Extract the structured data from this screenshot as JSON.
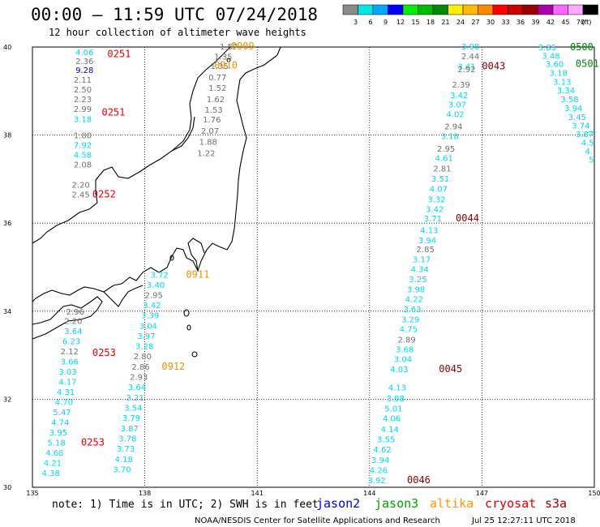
{
  "title": "00:00 – 11:59 UTC 07/24/2018",
  "subtitle": "12 hour collection of altimeter wave heights",
  "scale": {
    "labels": [
      "3",
      "6",
      "9",
      "12",
      "15",
      "18",
      "21",
      "24",
      "27",
      "30",
      "33",
      "36",
      "39",
      "42",
      "45",
      "70",
      "(ft)"
    ],
    "colors": [
      "#8a8a8a",
      "#00e5e5",
      "#00a8ff",
      "#0000ff",
      "#00ee00",
      "#00bb00",
      "#008800",
      "#ffee00",
      "#ffbb00",
      "#ff8800",
      "#ff0000",
      "#cc0000",
      "#990000",
      "#aa00aa",
      "#ff66ff",
      "#ffaaff",
      "#000000"
    ]
  },
  "map": {
    "lon_ticks": [
      "135",
      "138",
      "141",
      "144",
      "147",
      "150"
    ],
    "lat_ticks": [
      "40",
      "38",
      "36",
      "34",
      "32",
      "30"
    ]
  },
  "colors": {
    "gray": "#707070",
    "cyan": "#00d8e8",
    "navy": "#0000cc",
    "red": "#ee0000",
    "orange": "#f09000",
    "maroon": "#880000",
    "green": "#008800",
    "land": "#000000"
  },
  "observations": [
    {
      "t": "4.06",
      "c": "cyan",
      "lon": 136.15,
      "lat": 39.89
    },
    {
      "t": "2.36",
      "c": "gray",
      "lon": 136.15,
      "lat": 39.69
    },
    {
      "t": "9.28",
      "c": "navy",
      "lon": 136.15,
      "lat": 39.48
    },
    {
      "t": "2.11",
      "c": "gray",
      "lon": 136.1,
      "lat": 39.26
    },
    {
      "t": "2.50",
      "c": "gray",
      "lon": 136.1,
      "lat": 39.04
    },
    {
      "t": "2.23",
      "c": "gray",
      "lon": 136.1,
      "lat": 38.82
    },
    {
      "t": "2.99",
      "c": "gray",
      "lon": 136.1,
      "lat": 38.6
    },
    {
      "t": "3.18",
      "c": "cyan",
      "lon": 136.1,
      "lat": 38.37
    },
    {
      "t": "1.80",
      "c": "gray",
      "lon": 136.1,
      "lat": 38.0
    },
    {
      "t": "7.92",
      "c": "cyan",
      "lon": 136.1,
      "lat": 37.78
    },
    {
      "t": "4.58",
      "c": "cyan",
      "lon": 136.1,
      "lat": 37.56
    },
    {
      "t": "2.08",
      "c": "gray",
      "lon": 136.1,
      "lat": 37.34
    },
    {
      "t": "2.20",
      "c": "gray",
      "lon": 136.05,
      "lat": 36.88
    },
    {
      "t": "2.45",
      "c": "gray",
      "lon": 136.05,
      "lat": 36.66
    },
    {
      "t": "1.57",
      "c": "gray",
      "lon": 140.0,
      "lat": 40.02
    },
    {
      "t": "1.35",
      "c": "gray",
      "lon": 139.85,
      "lat": 39.79
    },
    {
      "t": "1.35",
      "c": "gray",
      "lon": 139.75,
      "lat": 39.58
    },
    {
      "t": "0.77",
      "c": "gray",
      "lon": 139.7,
      "lat": 39.32
    },
    {
      "t": "1.52",
      "c": "gray",
      "lon": 139.7,
      "lat": 39.08
    },
    {
      "t": "1.62",
      "c": "gray",
      "lon": 139.65,
      "lat": 38.82
    },
    {
      "t": "1.53",
      "c": "gray",
      "lon": 139.6,
      "lat": 38.58
    },
    {
      "t": "1.76",
      "c": "gray",
      "lon": 139.55,
      "lat": 38.36
    },
    {
      "t": "2.07",
      "c": "gray",
      "lon": 139.5,
      "lat": 38.1
    },
    {
      "t": "1.88",
      "c": "gray",
      "lon": 139.45,
      "lat": 37.85
    },
    {
      "t": "1.22",
      "c": "gray",
      "lon": 139.4,
      "lat": 37.6
    },
    {
      "t": "3.90",
      "c": "cyan",
      "lon": 146.45,
      "lat": 40.02
    },
    {
      "t": "2.44",
      "c": "gray",
      "lon": 146.45,
      "lat": 39.8
    },
    {
      "t": "3.41",
      "c": "cyan",
      "lon": 146.35,
      "lat": 39.57
    },
    {
      "t": "2.92",
      "c": "gray",
      "lon": 146.35,
      "lat": 39.5
    },
    {
      "t": "2.39",
      "c": "gray",
      "lon": 146.2,
      "lat": 39.15
    },
    {
      "t": "3.42",
      "c": "cyan",
      "lon": 146.15,
      "lat": 38.91
    },
    {
      "t": "3.07",
      "c": "cyan",
      "lon": 146.1,
      "lat": 38.7
    },
    {
      "t": "4.02",
      "c": "cyan",
      "lon": 146.05,
      "lat": 38.48
    },
    {
      "t": "2.94",
      "c": "gray",
      "lon": 146.0,
      "lat": 38.2
    },
    {
      "t": "3.18",
      "c": "cyan",
      "lon": 145.9,
      "lat": 37.98
    },
    {
      "t": "2.95",
      "c": "gray",
      "lon": 145.8,
      "lat": 37.7
    },
    {
      "t": "4.61",
      "c": "cyan",
      "lon": 145.75,
      "lat": 37.49
    },
    {
      "t": "2.81",
      "c": "gray",
      "lon": 145.7,
      "lat": 37.25
    },
    {
      "t": "3.51",
      "c": "cyan",
      "lon": 145.65,
      "lat": 37.02
    },
    {
      "t": "4.07",
      "c": "cyan",
      "lon": 145.6,
      "lat": 36.79
    },
    {
      "t": "3.32",
      "c": "cyan",
      "lon": 145.55,
      "lat": 36.55
    },
    {
      "t": "3.42",
      "c": "cyan",
      "lon": 145.5,
      "lat": 36.33
    },
    {
      "t": "3.71",
      "c": "cyan",
      "lon": 145.45,
      "lat": 36.11
    },
    {
      "t": "4.13",
      "c": "cyan",
      "lon": 145.35,
      "lat": 35.85
    },
    {
      "t": "3.94",
      "c": "cyan",
      "lon": 145.3,
      "lat": 35.62
    },
    {
      "t": "2.85",
      "c": "gray",
      "lon": 145.25,
      "lat": 35.41
    },
    {
      "t": "3.17",
      "c": "cyan",
      "lon": 145.15,
      "lat": 35.18
    },
    {
      "t": "4.34",
      "c": "cyan",
      "lon": 145.1,
      "lat": 34.96
    },
    {
      "t": "3.25",
      "c": "cyan",
      "lon": 145.05,
      "lat": 34.73
    },
    {
      "t": "3.98",
      "c": "cyan",
      "lon": 145.0,
      "lat": 34.5
    },
    {
      "t": "4.22",
      "c": "cyan",
      "lon": 144.95,
      "lat": 34.28
    },
    {
      "t": "3.63",
      "c": "cyan",
      "lon": 144.9,
      "lat": 34.05
    },
    {
      "t": "3.29",
      "c": "cyan",
      "lon": 144.85,
      "lat": 33.82
    },
    {
      "t": "4.75",
      "c": "cyan",
      "lon": 144.8,
      "lat": 33.6
    },
    {
      "t": "2.89",
      "c": "gray",
      "lon": 144.75,
      "lat": 33.36
    },
    {
      "t": "3.68",
      "c": "cyan",
      "lon": 144.7,
      "lat": 33.14
    },
    {
      "t": "3.04",
      "c": "cyan",
      "lon": 144.65,
      "lat": 32.92
    },
    {
      "t": "4.03",
      "c": "cyan",
      "lon": 144.55,
      "lat": 32.69
    },
    {
      "t": "4.13",
      "c": "cyan",
      "lon": 144.5,
      "lat": 32.27
    },
    {
      "t": "3.98",
      "c": "cyan",
      "lon": 144.45,
      "lat": 32.03
    },
    {
      "t": "5.01",
      "c": "cyan",
      "lon": 144.4,
      "lat": 31.8
    },
    {
      "t": "4.06",
      "c": "cyan",
      "lon": 144.35,
      "lat": 31.57
    },
    {
      "t": "4.14",
      "c": "cyan",
      "lon": 144.3,
      "lat": 31.33
    },
    {
      "t": "3.55",
      "c": "cyan",
      "lon": 144.2,
      "lat": 31.1
    },
    {
      "t": "4.62",
      "c": "cyan",
      "lon": 144.1,
      "lat": 30.87
    },
    {
      "t": "3.94",
      "c": "cyan",
      "lon": 144.05,
      "lat": 30.63
    },
    {
      "t": "4.26",
      "c": "cyan",
      "lon": 144.0,
      "lat": 30.4
    },
    {
      "t": "3.92",
      "c": "cyan",
      "lon": 143.95,
      "lat": 30.17
    },
    {
      "t": "3.85",
      "c": "cyan",
      "lon": 148.5,
      "lat": 40.0
    },
    {
      "t": "3.48",
      "c": "cyan",
      "lon": 148.6,
      "lat": 39.81
    },
    {
      "t": "3.60",
      "c": "cyan",
      "lon": 148.7,
      "lat": 39.62
    },
    {
      "t": "3.18",
      "c": "cyan",
      "lon": 148.8,
      "lat": 39.42
    },
    {
      "t": "3.13",
      "c": "cyan",
      "lon": 148.9,
      "lat": 39.22
    },
    {
      "t": "3.34",
      "c": "cyan",
      "lon": 149.0,
      "lat": 39.02
    },
    {
      "t": "3.58",
      "c": "cyan",
      "lon": 149.1,
      "lat": 38.82
    },
    {
      "t": "3.94",
      "c": "cyan",
      "lon": 149.2,
      "lat": 38.62
    },
    {
      "t": "3.45",
      "c": "cyan",
      "lon": 149.3,
      "lat": 38.42
    },
    {
      "t": "3.74",
      "c": "cyan",
      "lon": 149.4,
      "lat": 38.22
    },
    {
      "t": "3.87",
      "c": "cyan",
      "lon": 149.5,
      "lat": 38.03
    },
    {
      "t": "4.5",
      "c": "cyan",
      "lon": 149.65,
      "lat": 37.84
    },
    {
      "t": "4.",
      "c": "cyan",
      "lon": 149.75,
      "lat": 37.64
    },
    {
      "t": "5",
      "c": "cyan",
      "lon": 149.85,
      "lat": 37.45
    },
    {
      "t": "3.72",
      "c": "cyan",
      "lon": 138.15,
      "lat": 34.83
    },
    {
      "t": "3.40",
      "c": "cyan",
      "lon": 138.05,
      "lat": 34.6
    },
    {
      "t": "2.95",
      "c": "gray",
      "lon": 138.0,
      "lat": 34.37
    },
    {
      "t": "3.42",
      "c": "cyan",
      "lon": 137.95,
      "lat": 34.14
    },
    {
      "t": "3.39",
      "c": "cyan",
      "lon": 137.9,
      "lat": 33.91
    },
    {
      "t": "3.04",
      "c": "cyan",
      "lon": 137.85,
      "lat": 33.67
    },
    {
      "t": "3.97",
      "c": "cyan",
      "lon": 137.8,
      "lat": 33.44
    },
    {
      "t": "3.28",
      "c": "cyan",
      "lon": 137.75,
      "lat": 33.21
    },
    {
      "t": "2.80",
      "c": "gray",
      "lon": 137.7,
      "lat": 32.98
    },
    {
      "t": "2.86",
      "c": "gray",
      "lon": 137.65,
      "lat": 32.74
    },
    {
      "t": "2.93",
      "c": "gray",
      "lon": 137.6,
      "lat": 32.51
    },
    {
      "t": "3.64",
      "c": "cyan",
      "lon": 137.55,
      "lat": 32.28
    },
    {
      "t": "3.21",
      "c": "cyan",
      "lon": 137.5,
      "lat": 32.04
    },
    {
      "t": "3.54",
      "c": "cyan",
      "lon": 137.45,
      "lat": 31.81
    },
    {
      "t": "3.79",
      "c": "cyan",
      "lon": 137.4,
      "lat": 31.58
    },
    {
      "t": "3.87",
      "c": "cyan",
      "lon": 137.35,
      "lat": 31.34
    },
    {
      "t": "3.78",
      "c": "cyan",
      "lon": 137.3,
      "lat": 31.11
    },
    {
      "t": "3.73",
      "c": "cyan",
      "lon": 137.25,
      "lat": 30.88
    },
    {
      "t": "4.18",
      "c": "cyan",
      "lon": 137.2,
      "lat": 30.64
    },
    {
      "t": "3.70",
      "c": "cyan",
      "lon": 137.15,
      "lat": 30.41
    },
    {
      "t": "2.96",
      "c": "gray",
      "lon": 135.9,
      "lat": 34.0
    },
    {
      "t": "2.20",
      "c": "gray",
      "lon": 135.85,
      "lat": 33.78
    },
    {
      "t": "3.64",
      "c": "cyan",
      "lon": 135.85,
      "lat": 33.55
    },
    {
      "t": "6.23",
      "c": "cyan",
      "lon": 135.8,
      "lat": 33.32
    },
    {
      "t": "2.12",
      "c": "gray",
      "lon": 135.75,
      "lat": 33.09
    },
    {
      "t": "3.66",
      "c": "cyan",
      "lon": 135.75,
      "lat": 32.86
    },
    {
      "t": "3.03",
      "c": "cyan",
      "lon": 135.7,
      "lat": 32.63
    },
    {
      "t": "4.17",
      "c": "cyan",
      "lon": 135.7,
      "lat": 32.4
    },
    {
      "t": "4.31",
      "c": "cyan",
      "lon": 135.65,
      "lat": 32.17
    },
    {
      "t": "4.70",
      "c": "cyan",
      "lon": 135.6,
      "lat": 31.94
    },
    {
      "t": "5.47",
      "c": "cyan",
      "lon": 135.55,
      "lat": 31.71
    },
    {
      "t": "4.74",
      "c": "cyan",
      "lon": 135.5,
      "lat": 31.48
    },
    {
      "t": "3.95",
      "c": "cyan",
      "lon": 135.45,
      "lat": 31.25
    },
    {
      "t": "5.18",
      "c": "cyan",
      "lon": 135.4,
      "lat": 31.02
    },
    {
      "t": "4.68",
      "c": "cyan",
      "lon": 135.35,
      "lat": 30.79
    },
    {
      "t": "4.21",
      "c": "cyan",
      "lon": 135.3,
      "lat": 30.56
    },
    {
      "t": "4.38",
      "c": "cyan",
      "lon": 135.25,
      "lat": 30.33
    }
  ],
  "times": [
    {
      "t": "0251",
      "c": "red",
      "lon": 137.0,
      "lat": 39.84
    },
    {
      "t": "0251",
      "c": "red",
      "lon": 136.85,
      "lat": 38.52
    },
    {
      "t": "0252",
      "c": "red",
      "lon": 136.6,
      "lat": 36.66
    },
    {
      "t": "0909",
      "c": "orange",
      "lon": 140.3,
      "lat": 40.02
    },
    {
      "t": "0910",
      "c": "orange",
      "lon": 139.85,
      "lat": 39.59
    },
    {
      "t": "0043",
      "c": "maroon",
      "lon": 147.0,
      "lat": 39.57
    },
    {
      "t": "0044",
      "c": "maroon",
      "lon": 146.3,
      "lat": 36.11
    },
    {
      "t": "0500",
      "c": "green",
      "lon": 149.35,
      "lat": 40.0
    },
    {
      "t": "0501",
      "c": "green",
      "lon": 149.5,
      "lat": 39.62
    },
    {
      "t": "0911",
      "c": "orange",
      "lon": 139.1,
      "lat": 34.83
    },
    {
      "t": "0253",
      "c": "red",
      "lon": 136.6,
      "lat": 33.06
    },
    {
      "t": "0912",
      "c": "orange",
      "lon": 138.45,
      "lat": 32.74
    },
    {
      "t": "0045",
      "c": "maroon",
      "lon": 145.85,
      "lat": 32.69
    },
    {
      "t": "0253",
      "c": "red",
      "lon": 136.3,
      "lat": 31.02
    },
    {
      "t": "0046",
      "c": "maroon",
      "lon": 145.0,
      "lat": 30.17
    }
  ],
  "note": "note: 1) Time is in UTC; 2) SWH is in feet",
  "legend": [
    {
      "label": "jason2",
      "color": "#0000ee"
    },
    {
      "label": "jason3",
      "color": "#00a000"
    },
    {
      "label": "altika",
      "color": "#ff9900"
    },
    {
      "label": "cryosat",
      "color": "#dd0000"
    },
    {
      "label": "s3a",
      "color": "#990000"
    }
  ],
  "credit": {
    "org": "NOAA/NESDIS Center for Satellite Applications and Research",
    "stamp": "Jul 25 12:27:11 UTC 2018"
  }
}
